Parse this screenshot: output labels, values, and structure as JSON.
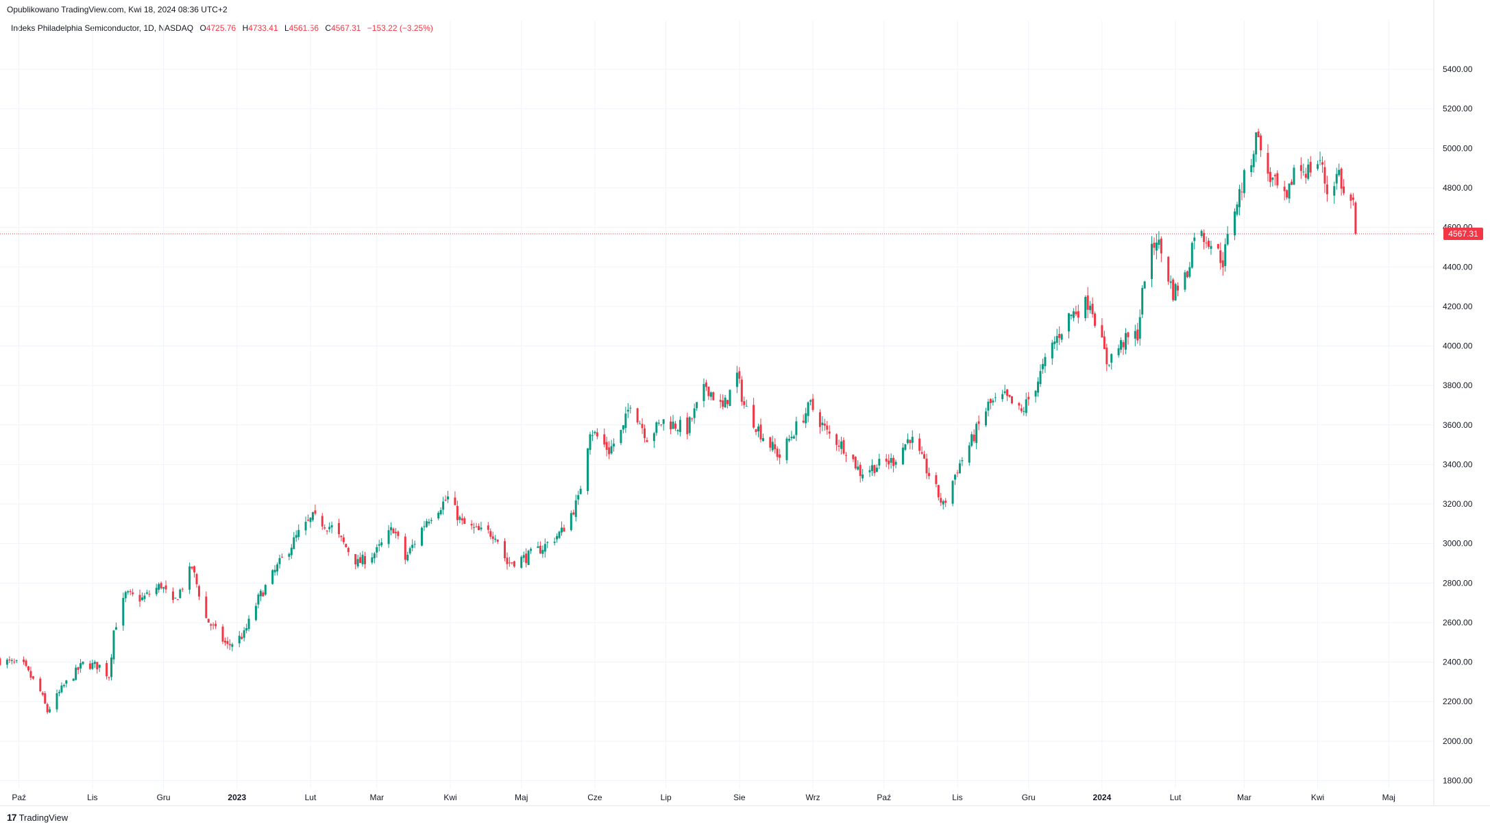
{
  "published": "Opublikowano TradingView.com, Kwi 18, 2024 08:36 UTC+2",
  "legend": {
    "symbol": "Indeks Philadelphia Semiconductor, 1D, NASDAQ",
    "open_label": "O",
    "open": "4725.76",
    "high_label": "H",
    "high": "4733.41",
    "low_label": "L",
    "low": "4561.56",
    "close_label": "C",
    "close": "4567.31",
    "change": "−153.22 (−3.25%)"
  },
  "footer": {
    "brand_icon": "tradingview-logo-icon",
    "brand": "TradingView"
  },
  "colors": {
    "up": "#089981",
    "down": "#f23645",
    "grid": "#f0f3fa",
    "axis_text": "#131722",
    "last_price": "#f23645"
  },
  "chart_data": {
    "type": "candlestick",
    "title": "Indeks Philadelphia Semiconductor, 1D, NASDAQ",
    "xlabel": "",
    "ylabel": "",
    "ylim": [
      1760,
      5560
    ],
    "y_ticks": [
      "1800.00",
      "2000.00",
      "2200.00",
      "2400.00",
      "2600.00",
      "2800.00",
      "3000.00",
      "3200.00",
      "3400.00",
      "3600.00",
      "3800.00",
      "4000.00",
      "4200.00",
      "4400.00",
      "4600.00",
      "4800.00",
      "5000.00",
      "5200.00",
      "5400.00"
    ],
    "x_ticks": [
      {
        "label": "Paź",
        "date": "2022-10-01",
        "bold": false
      },
      {
        "label": "Lis",
        "date": "2022-11-01",
        "bold": false
      },
      {
        "label": "Gru",
        "date": "2022-12-01",
        "bold": false
      },
      {
        "label": "2023",
        "date": "2023-01-01",
        "bold": true
      },
      {
        "label": "Lut",
        "date": "2023-02-01",
        "bold": false
      },
      {
        "label": "Mar",
        "date": "2023-03-01",
        "bold": false
      },
      {
        "label": "Kwi",
        "date": "2023-04-01",
        "bold": false
      },
      {
        "label": "Maj",
        "date": "2023-05-01",
        "bold": false
      },
      {
        "label": "Cze",
        "date": "2023-06-01",
        "bold": false
      },
      {
        "label": "Lip",
        "date": "2023-07-01",
        "bold": false
      },
      {
        "label": "Sie",
        "date": "2023-08-01",
        "bold": false
      },
      {
        "label": "Wrz",
        "date": "2023-09-01",
        "bold": false
      },
      {
        "label": "Paź",
        "date": "2023-10-01",
        "bold": false
      },
      {
        "label": "Lis",
        "date": "2023-11-01",
        "bold": false
      },
      {
        "label": "Gru",
        "date": "2023-12-01",
        "bold": false
      },
      {
        "label": "2024",
        "date": "2024-01-01",
        "bold": true
      },
      {
        "label": "Lut",
        "date": "2024-02-01",
        "bold": false
      },
      {
        "label": "Mar",
        "date": "2024-03-01",
        "bold": false
      },
      {
        "label": "Kwi",
        "date": "2024-04-01",
        "bold": false
      },
      {
        "label": "Maj",
        "date": "2024-05-01",
        "bold": false
      }
    ],
    "x_range": [
      "2022-09-23",
      "2024-05-20"
    ],
    "last_price": 4567.31,
    "last_price_label": "4567.31",
    "series": [
      {
        "date": "2022-09-23",
        "close": 2410
      },
      {
        "date": "2022-10-03",
        "close": 2380
      },
      {
        "date": "2022-10-10",
        "close": 2250
      },
      {
        "date": "2022-10-13",
        "close": 2150
      },
      {
        "date": "2022-10-20",
        "close": 2280
      },
      {
        "date": "2022-10-28",
        "close": 2390
      },
      {
        "date": "2022-11-04",
        "close": 2380
      },
      {
        "date": "2022-11-08",
        "close": 2330
      },
      {
        "date": "2022-11-10",
        "close": 2560
      },
      {
        "date": "2022-11-15",
        "close": 2740
      },
      {
        "date": "2022-11-22",
        "close": 2720
      },
      {
        "date": "2022-11-30",
        "close": 2790
      },
      {
        "date": "2022-12-05",
        "close": 2690
      },
      {
        "date": "2022-12-13",
        "close": 2880
      },
      {
        "date": "2022-12-19",
        "close": 2620
      },
      {
        "date": "2022-12-28",
        "close": 2480
      },
      {
        "date": "2023-01-04",
        "close": 2540
      },
      {
        "date": "2023-01-10",
        "close": 2720
      },
      {
        "date": "2023-01-19",
        "close": 2900
      },
      {
        "date": "2023-01-27",
        "close": 3050
      },
      {
        "date": "2023-02-02",
        "close": 3130
      },
      {
        "date": "2023-02-10",
        "close": 3080
      },
      {
        "date": "2023-02-21",
        "close": 2900
      },
      {
        "date": "2023-03-01",
        "close": 2960
      },
      {
        "date": "2023-03-08",
        "close": 3080
      },
      {
        "date": "2023-03-13",
        "close": 2920
      },
      {
        "date": "2023-03-22",
        "close": 3120
      },
      {
        "date": "2023-03-31",
        "close": 3230
      },
      {
        "date": "2023-04-06",
        "close": 3100
      },
      {
        "date": "2023-04-13",
        "close": 3060
      },
      {
        "date": "2023-04-20",
        "close": 3050
      },
      {
        "date": "2023-04-25",
        "close": 2900
      },
      {
        "date": "2023-05-03",
        "close": 2930
      },
      {
        "date": "2023-05-10",
        "close": 2980
      },
      {
        "date": "2023-05-18",
        "close": 3060
      },
      {
        "date": "2023-05-25",
        "close": 3220
      },
      {
        "date": "2023-05-30",
        "close": 3580
      },
      {
        "date": "2023-06-07",
        "close": 3470
      },
      {
        "date": "2023-06-13",
        "close": 3580
      },
      {
        "date": "2023-06-16",
        "close": 3720
      },
      {
        "date": "2023-06-23",
        "close": 3540
      },
      {
        "date": "2023-06-30",
        "close": 3620
      },
      {
        "date": "2023-07-10",
        "close": 3580
      },
      {
        "date": "2023-07-18",
        "close": 3800
      },
      {
        "date": "2023-07-25",
        "close": 3680
      },
      {
        "date": "2023-07-31",
        "close": 3850
      },
      {
        "date": "2023-08-03",
        "close": 3700
      },
      {
        "date": "2023-08-10",
        "close": 3560
      },
      {
        "date": "2023-08-18",
        "close": 3440
      },
      {
        "date": "2023-08-24",
        "close": 3570
      },
      {
        "date": "2023-08-31",
        "close": 3700
      },
      {
        "date": "2023-09-07",
        "close": 3560
      },
      {
        "date": "2023-09-15",
        "close": 3480
      },
      {
        "date": "2023-09-21",
        "close": 3360
      },
      {
        "date": "2023-09-27",
        "close": 3390
      },
      {
        "date": "2023-10-05",
        "close": 3420
      },
      {
        "date": "2023-10-12",
        "close": 3540
      },
      {
        "date": "2023-10-20",
        "close": 3350
      },
      {
        "date": "2023-10-26",
        "close": 3190
      },
      {
        "date": "2023-11-01",
        "close": 3380
      },
      {
        "date": "2023-11-07",
        "close": 3520
      },
      {
        "date": "2023-11-14",
        "close": 3700
      },
      {
        "date": "2023-11-21",
        "close": 3740
      },
      {
        "date": "2023-11-28",
        "close": 3660
      },
      {
        "date": "2023-12-04",
        "close": 3800
      },
      {
        "date": "2023-12-11",
        "close": 4000
      },
      {
        "date": "2023-12-18",
        "close": 4150
      },
      {
        "date": "2023-12-27",
        "close": 4230
      },
      {
        "date": "2024-01-03",
        "close": 3920
      },
      {
        "date": "2024-01-10",
        "close": 4020
      },
      {
        "date": "2024-01-16",
        "close": 4060
      },
      {
        "date": "2024-01-19",
        "close": 4360
      },
      {
        "date": "2024-01-24",
        "close": 4550
      },
      {
        "date": "2024-01-31",
        "close": 4270
      },
      {
        "date": "2024-02-06",
        "close": 4370
      },
      {
        "date": "2024-02-09",
        "close": 4580
      },
      {
        "date": "2024-02-15",
        "close": 4540
      },
      {
        "date": "2024-02-21",
        "close": 4430
      },
      {
        "date": "2024-02-26",
        "close": 4700
      },
      {
        "date": "2024-03-04",
        "close": 4950
      },
      {
        "date": "2024-03-07",
        "close": 5100
      },
      {
        "date": "2024-03-08",
        "close": 4960
      },
      {
        "date": "2024-03-12",
        "close": 4850
      },
      {
        "date": "2024-03-19",
        "close": 4720
      },
      {
        "date": "2024-03-22",
        "close": 4900
      },
      {
        "date": "2024-03-28",
        "close": 4890
      },
      {
        "date": "2024-04-02",
        "close": 4940
      },
      {
        "date": "2024-04-05",
        "close": 4780
      },
      {
        "date": "2024-04-10",
        "close": 4880
      },
      {
        "date": "2024-04-12",
        "close": 4760
      },
      {
        "date": "2024-04-16",
        "close": 4720
      },
      {
        "date": "2024-04-17",
        "close": 4567.31
      }
    ]
  }
}
